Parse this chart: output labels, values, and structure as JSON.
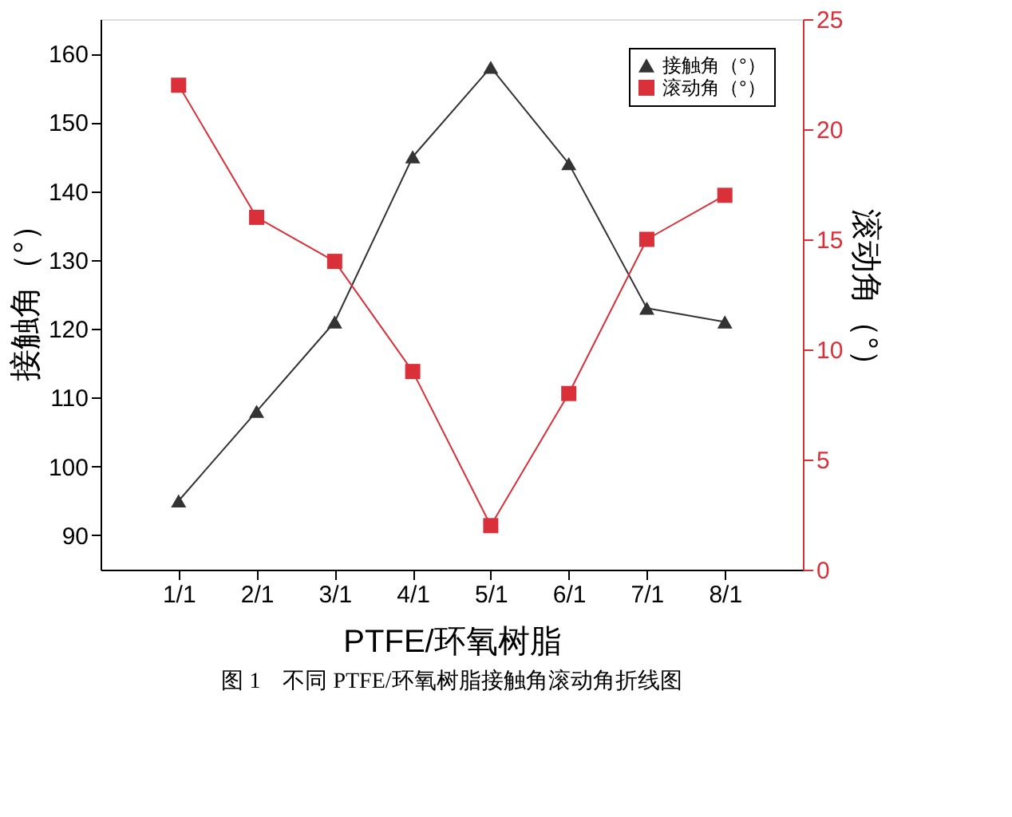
{
  "chart_data": {
    "type": "line",
    "categories": [
      "1/1",
      "2/1",
      "3/1",
      "4/1",
      "5/1",
      "6/1",
      "7/1",
      "8/1"
    ],
    "xlabel": "PTFE/环氧树脂",
    "ylabel": "接触角（°）",
    "y2label": "滚动角（°）",
    "series": [
      {
        "name": "接触角（°）",
        "color": "#333333",
        "marker": "triangle",
        "values": [
          95,
          108,
          121,
          145,
          158,
          144,
          123,
          121
        ]
      },
      {
        "name": "滚动角（°）",
        "color": "#d9303a",
        "marker": "square",
        "axis": "y2",
        "values": [
          22,
          16,
          14,
          9,
          2,
          8,
          15,
          17
        ]
      }
    ],
    "ylim": [
      85,
      165
    ],
    "yticks": [
      90,
      100,
      110,
      120,
      130,
      140,
      150,
      160
    ],
    "y2lim": [
      0,
      25
    ],
    "y2ticks": [
      0,
      5,
      10,
      15,
      20,
      25
    ],
    "legend": "top right",
    "grid": false,
    "line_style": "solid",
    "annotations": [
      "图 1　不同 PTFE/环氧树脂接触角滚动角折线图"
    ]
  }
}
